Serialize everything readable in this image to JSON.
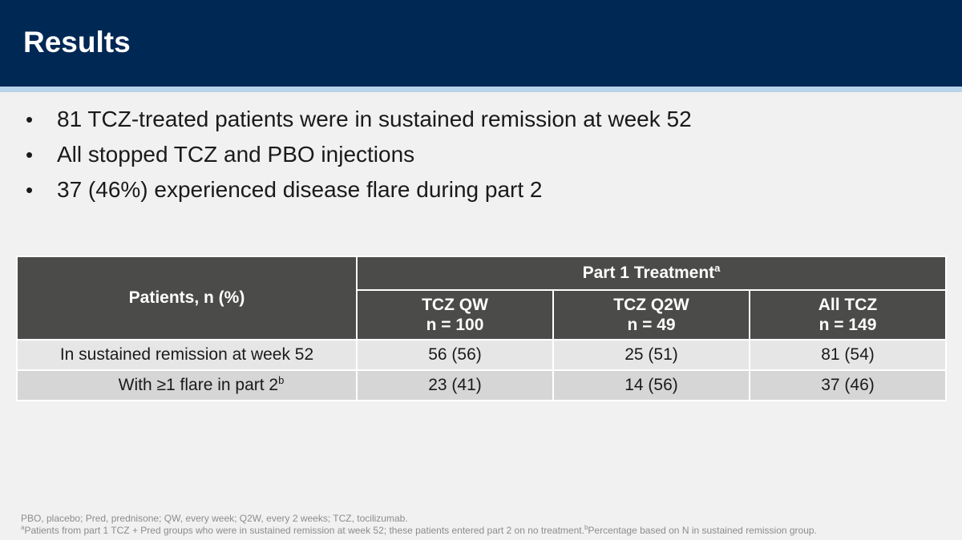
{
  "header": {
    "title": "Results",
    "bg_color": "#002855",
    "stripe_color": "#b9d3e9"
  },
  "bullets": [
    "81 TCZ-treated patients were in sustained remission at week 52",
    "All stopped TCZ and PBO injections",
    "37 (46%) experienced disease flare during part 2"
  ],
  "table": {
    "row_header": "Patients, n (%)",
    "group_header": "Part 1 Treatment",
    "group_header_sup": "a",
    "columns": [
      {
        "name": "TCZ QW",
        "n": "n = 100",
        "color": "#999700"
      },
      {
        "name": "TCZ Q2W",
        "n": "n = 49",
        "color": "#c04a00"
      },
      {
        "name": "All TCZ",
        "n": "n = 149",
        "color": "#4b4b49"
      }
    ],
    "rows": [
      {
        "label": "In sustained remission at week 52",
        "sup": "",
        "values": [
          "56 (56)",
          "25 (51)",
          "81 (54)"
        ]
      },
      {
        "label": "With ≥1 flare in part 2",
        "sup": "b",
        "values": [
          "23 (41)",
          "14 (56)",
          "37 (46)"
        ]
      }
    ]
  },
  "footnotes": {
    "line1": "PBO, placebo; Pred, prednisone; QW, every week; Q2W, every 2 weeks; TCZ, tocilizumab.",
    "line2_sup_a": "a",
    "line2_a": "Patients from part 1 TCZ + Pred groups who were in sustained remission at week 52; these patients entered part 2 on no treatment.",
    "line2_sup_b": "b",
    "line2_b": "Percentage based on N in sustained remission group."
  }
}
